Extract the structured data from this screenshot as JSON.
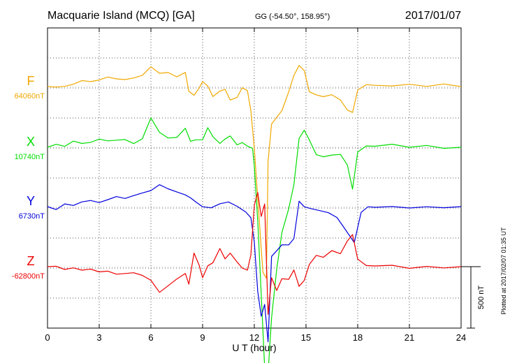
{
  "chart_data": {
    "type": "line",
    "title": "Macquarie Island (MCQ)  [GA]",
    "coords": "GG (-54.50°, 158.95°)",
    "date": "2017/01/07",
    "xlabel": "U T (hour)",
    "xlim": [
      0,
      24
    ],
    "xticks": [
      0,
      3,
      6,
      9,
      12,
      15,
      18,
      21,
      24
    ],
    "grid": true,
    "plotted_note": "Plotted at 2017/02/07 01:35 UT",
    "scale_bar_label": "500 nT",
    "scale_bar_nT": 500,
    "series": [
      {
        "name": "F",
        "baseline_label": "64060nT",
        "color": "#f0a800",
        "x": [
          0,
          0.5,
          1,
          1.5,
          2,
          2.5,
          3,
          3.5,
          4,
          4.5,
          5,
          5.5,
          6,
          6.5,
          7,
          7.5,
          8,
          8.2,
          8.5,
          8.8,
          9,
          9.3,
          9.6,
          10,
          10.3,
          10.6,
          11,
          11.3,
          11.6,
          11.8,
          12,
          12.2,
          12.35,
          12.5,
          12.7,
          12.8,
          13,
          13.3,
          13.6,
          14,
          14.3,
          14.6,
          14.9,
          15.2,
          15.6,
          16,
          16.5,
          17,
          17.4,
          17.7,
          18,
          18.5,
          19,
          20,
          21,
          22,
          23,
          24
        ],
        "y": [
          0,
          0,
          10,
          30,
          60,
          50,
          60,
          80,
          60,
          50,
          60,
          80,
          150,
          100,
          110,
          80,
          120,
          -30,
          -60,
          0,
          50,
          10,
          -80,
          -40,
          -30,
          -120,
          -100,
          -20,
          -40,
          -200,
          -500,
          -900,
          -1200,
          -1500,
          -1550,
          -600,
          -300,
          -250,
          -200,
          -50,
          80,
          160,
          120,
          -50,
          -70,
          -80,
          -60,
          -100,
          -180,
          -200,
          -20,
          20,
          10,
          0,
          10,
          -10,
          10,
          0
        ]
      },
      {
        "name": "X",
        "baseline_label": "10740nT",
        "color": "#00dd00",
        "x": [
          0,
          0.5,
          1,
          1.5,
          2,
          2.5,
          3,
          3.5,
          4,
          4.5,
          5,
          5.5,
          6,
          6.5,
          7,
          7.5,
          8,
          8.3,
          8.6,
          9,
          9.3,
          9.6,
          10,
          10.3,
          10.6,
          11,
          11.3,
          11.6,
          11.9,
          12,
          12.2,
          12.4,
          12.6,
          12.8,
          13,
          13.3,
          13.6,
          14,
          14.3,
          14.6,
          14.9,
          15.2,
          15.6,
          16,
          16.5,
          17,
          17.4,
          17.7,
          18,
          18.5,
          19,
          20,
          21,
          22,
          23,
          24
        ],
        "y": [
          0,
          20,
          0,
          40,
          20,
          30,
          60,
          50,
          60,
          70,
          40,
          80,
          250,
          130,
          80,
          80,
          150,
          40,
          50,
          50,
          150,
          80,
          30,
          70,
          100,
          30,
          50,
          20,
          0,
          -150,
          -600,
          -1200,
          -1800,
          -1850,
          -1400,
          -1000,
          -700,
          -500,
          -300,
          80,
          150,
          70,
          -50,
          -70,
          -60,
          -60,
          -150,
          -350,
          -50,
          0,
          0,
          20,
          0,
          20,
          0,
          0
        ]
      },
      {
        "name": "Y",
        "baseline_label": "6730nT",
        "color": "#0000dd",
        "x": [
          0,
          0.5,
          1,
          1.5,
          2,
          2.5,
          3,
          3.5,
          4,
          4.5,
          5,
          5.5,
          6,
          6.5,
          7,
          7.5,
          8,
          8.3,
          8.6,
          9,
          9.5,
          10,
          10.5,
          11,
          11.5,
          11.8,
          12,
          12.2,
          12.4,
          12.6,
          12.8,
          13,
          13.3,
          13.6,
          14,
          14.3,
          14.6,
          14.9,
          15.3,
          15.8,
          16.3,
          16.8,
          17.3,
          17.8,
          18.2,
          18.6,
          19,
          20,
          21,
          22,
          23,
          24
        ],
        "y": [
          0,
          -20,
          30,
          20,
          50,
          60,
          40,
          60,
          80,
          60,
          80,
          100,
          120,
          170,
          140,
          120,
          100,
          80,
          50,
          10,
          0,
          30,
          40,
          0,
          -50,
          -100,
          -300,
          -700,
          -900,
          -800,
          -1100,
          -400,
          -350,
          -300,
          -300,
          -250,
          50,
          0,
          -20,
          -40,
          -60,
          -100,
          -200,
          -300,
          -50,
          0,
          0,
          10,
          0,
          10,
          0,
          0
        ]
      },
      {
        "name": "Z",
        "baseline_label": "-62800nT",
        "color": "#ee0000",
        "x": [
          0,
          0.5,
          1,
          1.5,
          2,
          2.5,
          3,
          3.5,
          4,
          4.5,
          5,
          5.5,
          6,
          6.5,
          7,
          7.5,
          8,
          8.2,
          8.5,
          8.8,
          9,
          9.3,
          9.6,
          10,
          10.3,
          10.6,
          11,
          11.3,
          11.6,
          11.8,
          12,
          12.2,
          12.4,
          12.6,
          12.8,
          13,
          13.3,
          13.6,
          14,
          14.3,
          14.6,
          14.9,
          15.2,
          15.6,
          16,
          16.5,
          17,
          17.4,
          17.7,
          18,
          18.5,
          19,
          20,
          21,
          22,
          23,
          24
        ],
        "y": [
          0,
          0,
          -30,
          -20,
          -40,
          -30,
          -50,
          -40,
          -60,
          -50,
          -40,
          -60,
          -100,
          -200,
          -150,
          -100,
          -60,
          -150,
          100,
          0,
          -100,
          0,
          30,
          150,
          70,
          120,
          50,
          0,
          -20,
          100,
          500,
          600,
          400,
          500,
          -400,
          -100,
          -200,
          -100,
          -100,
          -20,
          -150,
          -100,
          30,
          100,
          80,
          130,
          100,
          200,
          250,
          50,
          0,
          0,
          10,
          -10,
          10,
          0,
          0
        ]
      }
    ]
  }
}
